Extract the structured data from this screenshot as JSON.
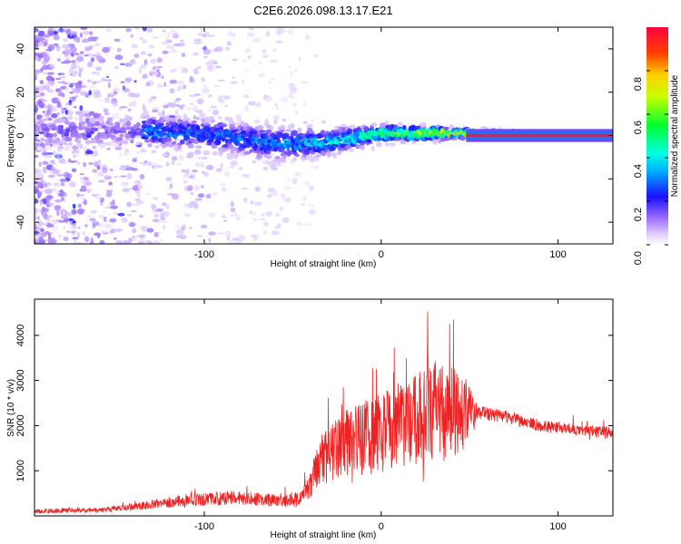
{
  "figure_title": "C2E6.2026.098.13.17.E21",
  "colors": {
    "snr_line": "#ee2222",
    "center_line": "#ff1133",
    "frame": "#000000"
  },
  "chart_data": [
    {
      "type": "heatmap",
      "title": "C2E6.2026.098.13.17.E21",
      "xlabel": "Height of straight line (km)",
      "ylabel": "Frequency (Hz)",
      "xlim": [
        -196,
        131
      ],
      "ylim": [
        -50,
        50
      ],
      "x_ticks": [
        -100,
        0,
        100
      ],
      "y_ticks": [
        -40,
        -20,
        0,
        20,
        40
      ],
      "x_tick_labels": [
        "-100",
        "0",
        "100"
      ],
      "y_tick_labels": [
        "-40",
        "-20",
        "0",
        "20",
        "40"
      ],
      "colorbar": {
        "label": "Normalized spectral amplitude",
        "range": [
          0,
          1
        ],
        "ticks": [
          0,
          0.2,
          0.4,
          0.6,
          0.8
        ],
        "tick_labels": [
          "0.0",
          "0.2",
          "0.4",
          "0.6",
          "0.8"
        ],
        "colormap": "rainbow"
      },
      "trace": {
        "description": "signal centered near 0 Hz",
        "x": [
          -135,
          -100,
          -60,
          -30,
          0,
          30,
          50,
          90,
          131
        ],
        "center_hz": [
          2,
          1,
          -4,
          -3,
          1,
          1,
          1,
          0,
          0
        ],
        "spread_hz": [
          7,
          7,
          8,
          6,
          4,
          3,
          2,
          1.5,
          1.5
        ],
        "peak_amplitude": [
          0.35,
          0.3,
          0.32,
          0.4,
          0.55,
          0.75,
          0.8,
          0.95,
          0.9
        ]
      }
    },
    {
      "type": "line",
      "xlabel": "Height of straight line (km)",
      "ylabel": "SNR (10 * v/v)",
      "xlim": [
        -196,
        131
      ],
      "ylim": [
        0,
        4800
      ],
      "x_ticks": [
        -100,
        0,
        100
      ],
      "y_ticks": [
        1000,
        2000,
        3000,
        4000
      ],
      "x_tick_labels": [
        "-100",
        "0",
        "100"
      ],
      "y_tick_labels": [
        "1000",
        "2000",
        "3000",
        "4000"
      ],
      "envelope": {
        "x": [
          -196,
          -160,
          -140,
          -110,
          -80,
          -55,
          -45,
          -40,
          -35,
          -25,
          -10,
          0,
          15,
          30,
          40,
          48,
          55,
          70,
          90,
          110,
          131
        ],
        "base": [
          100,
          130,
          200,
          350,
          400,
          320,
          380,
          700,
          1200,
          1500,
          1700,
          1850,
          2100,
          2300,
          2350,
          2300,
          2300,
          2200,
          2000,
          1900,
          1850
        ],
        "noise": [
          80,
          90,
          130,
          230,
          260,
          230,
          300,
          500,
          900,
          1200,
          1400,
          1500,
          1700,
          1900,
          1800,
          1400,
          260,
          230,
          230,
          220,
          220
        ]
      }
    }
  ]
}
